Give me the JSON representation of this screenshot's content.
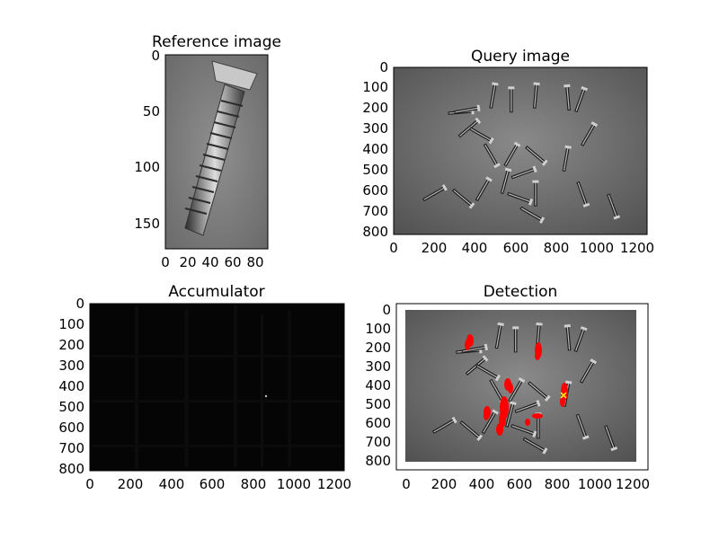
{
  "figure": {
    "panels": [
      {
        "id": "reference",
        "title": "Reference image",
        "xticks": [
          "0",
          "20",
          "40",
          "60",
          "80"
        ],
        "yticks": [
          "0",
          "50",
          "100",
          "150"
        ]
      },
      {
        "id": "query",
        "title": "Query image",
        "xticks": [
          "0",
          "200",
          "400",
          "600",
          "800",
          "1000",
          "1200"
        ],
        "yticks": [
          "0",
          "100",
          "200",
          "300",
          "400",
          "500",
          "600",
          "700",
          "800"
        ]
      },
      {
        "id": "accumulator",
        "title": "Accumulator",
        "xticks": [
          "0",
          "200",
          "400",
          "600",
          "800",
          "1000",
          "1200"
        ],
        "yticks": [
          "0",
          "100",
          "200",
          "300",
          "400",
          "500",
          "600",
          "700",
          "800"
        ]
      },
      {
        "id": "detection",
        "title": "Detection",
        "xticks": [
          "0",
          "200",
          "400",
          "600",
          "800",
          "1000",
          "1200"
        ],
        "yticks": [
          "0",
          "100",
          "200",
          "300",
          "400",
          "500",
          "600",
          "700",
          "800"
        ]
      }
    ],
    "colors": {
      "detection_marks": "#ff0000",
      "best_match": "#ffff00",
      "accumulator_bg": "#050505"
    }
  }
}
